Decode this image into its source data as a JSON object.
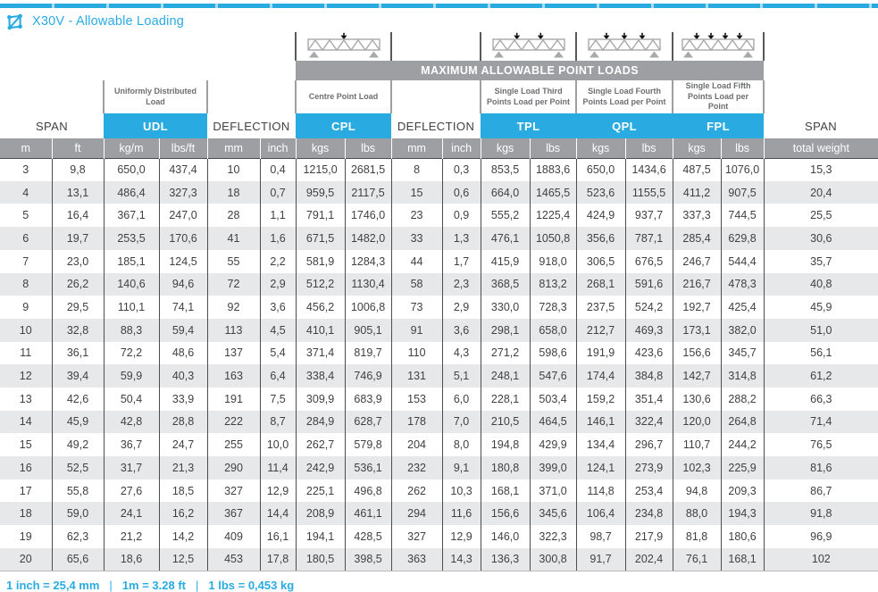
{
  "page": {
    "title": "X30V - Allowable Loading"
  },
  "footer": {
    "items": [
      "1 inch = 25,4 mm",
      "1m = 3.28 ft",
      "1 lbs = 0,453 kg"
    ],
    "separator": "|"
  },
  "colors": {
    "brand_cyan": "#29abe2",
    "gray_bar": "#9d9fa2",
    "row_alt": "#e7e8e9",
    "text_dark": "#414042"
  },
  "table": {
    "point_loads_banner": "MAXIMUM ALLOWABLE POINT LOADS",
    "groups": [
      {
        "label": "SPAN",
        "desc": "",
        "units": [
          "m",
          "ft"
        ]
      },
      {
        "label": "UDL",
        "desc": "Uniformly Distributed Load",
        "units": [
          "kg/m",
          "lbs/ft"
        ]
      },
      {
        "label": "DEFLECTION",
        "desc": "",
        "units": [
          "mm",
          "inch"
        ]
      },
      {
        "label": "CPL",
        "desc": "Centre Point Load",
        "units": [
          "kgs",
          "lbs"
        ],
        "truss_arrows": 1
      },
      {
        "label": "DEFLECTION",
        "desc": "",
        "units": [
          "mm",
          "inch"
        ]
      },
      {
        "label": "TPL",
        "desc": "Single Load Third Points Load per Point",
        "units": [
          "kgs",
          "lbs"
        ],
        "truss_arrows": 2
      },
      {
        "label": "QPL",
        "desc": "Single Load Fourth Points Load per Point",
        "units": [
          "kgs",
          "lbs"
        ],
        "truss_arrows": 3
      },
      {
        "label": "FPL",
        "desc": "Single Load Fifth Points Load per Point",
        "units": [
          "kgs",
          "lbs"
        ],
        "truss_arrows": 4
      },
      {
        "label": "SPAN",
        "desc": "",
        "units": [
          "total weight"
        ]
      }
    ],
    "units": [
      "m",
      "ft",
      "kg/m",
      "lbs/ft",
      "mm",
      "inch",
      "kgs",
      "lbs",
      "mm",
      "inch",
      "kgs",
      "lbs",
      "kgs",
      "lbs",
      "kgs",
      "lbs",
      "total weight"
    ],
    "rows": [
      [
        "3",
        "9,8",
        "650,0",
        "437,4",
        "10",
        "0,4",
        "1215,0",
        "2681,5",
        "8",
        "0,3",
        "853,5",
        "1883,6",
        "650,0",
        "1434,6",
        "487,5",
        "1076,0",
        "15,3"
      ],
      [
        "4",
        "13,1",
        "486,4",
        "327,3",
        "18",
        "0,7",
        "959,5",
        "2117,5",
        "15",
        "0,6",
        "664,0",
        "1465,5",
        "523,6",
        "1155,5",
        "411,2",
        "907,5",
        "20,4"
      ],
      [
        "5",
        "16,4",
        "367,1",
        "247,0",
        "28",
        "1,1",
        "791,1",
        "1746,0",
        "23",
        "0,9",
        "555,2",
        "1225,4",
        "424,9",
        "937,7",
        "337,3",
        "744,5",
        "25,5"
      ],
      [
        "6",
        "19,7",
        "253,5",
        "170,6",
        "41",
        "1,6",
        "671,5",
        "1482,0",
        "33",
        "1,3",
        "476,1",
        "1050,8",
        "356,6",
        "787,1",
        "285,4",
        "629,8",
        "30,6"
      ],
      [
        "7",
        "23,0",
        "185,1",
        "124,5",
        "55",
        "2,2",
        "581,9",
        "1284,3",
        "44",
        "1,7",
        "415,9",
        "918,0",
        "306,5",
        "676,5",
        "246,7",
        "544,4",
        "35,7"
      ],
      [
        "8",
        "26,2",
        "140,6",
        "94,6",
        "72",
        "2,9",
        "512,2",
        "1130,4",
        "58",
        "2,3",
        "368,5",
        "813,2",
        "268,1",
        "591,6",
        "216,7",
        "478,3",
        "40,8"
      ],
      [
        "9",
        "29,5",
        "110,1",
        "74,1",
        "92",
        "3,6",
        "456,2",
        "1006,8",
        "73",
        "2,9",
        "330,0",
        "728,3",
        "237,5",
        "524,2",
        "192,7",
        "425,4",
        "45,9"
      ],
      [
        "10",
        "32,8",
        "88,3",
        "59,4",
        "113",
        "4,5",
        "410,1",
        "905,1",
        "91",
        "3,6",
        "298,1",
        "658,0",
        "212,7",
        "469,3",
        "173,1",
        "382,0",
        "51,0"
      ],
      [
        "11",
        "36,1",
        "72,2",
        "48,6",
        "137",
        "5,4",
        "371,4",
        "819,7",
        "110",
        "4,3",
        "271,2",
        "598,6",
        "191,9",
        "423,6",
        "156,6",
        "345,7",
        "56,1"
      ],
      [
        "12",
        "39,4",
        "59,9",
        "40,3",
        "163",
        "6,4",
        "338,4",
        "746,9",
        "131",
        "5,1",
        "248,1",
        "547,6",
        "174,4",
        "384,8",
        "142,7",
        "314,8",
        "61,2"
      ],
      [
        "13",
        "42,6",
        "50,4",
        "33,9",
        "191",
        "7,5",
        "309,9",
        "683,9",
        "153",
        "6,0",
        "228,1",
        "503,4",
        "159,2",
        "351,4",
        "130,6",
        "288,2",
        "66,3"
      ],
      [
        "14",
        "45,9",
        "42,8",
        "28,8",
        "222",
        "8,7",
        "284,9",
        "628,7",
        "178",
        "7,0",
        "210,5",
        "464,5",
        "146,1",
        "322,4",
        "120,0",
        "264,8",
        "71,4"
      ],
      [
        "15",
        "49,2",
        "36,7",
        "24,7",
        "255",
        "10,0",
        "262,7",
        "579,8",
        "204",
        "8,0",
        "194,8",
        "429,9",
        "134,4",
        "296,7",
        "110,7",
        "244,2",
        "76,5"
      ],
      [
        "16",
        "52,5",
        "31,7",
        "21,3",
        "290",
        "11,4",
        "242,9",
        "536,1",
        "232",
        "9,1",
        "180,8",
        "399,0",
        "124,1",
        "273,9",
        "102,3",
        "225,9",
        "81,6"
      ],
      [
        "17",
        "55,8",
        "27,6",
        "18,5",
        "327",
        "12,9",
        "225,1",
        "496,8",
        "262",
        "10,3",
        "168,1",
        "371,0",
        "114,8",
        "253,4",
        "94,8",
        "209,3",
        "86,7"
      ],
      [
        "18",
        "59,0",
        "24,1",
        "16,2",
        "367",
        "14,4",
        "208,9",
        "461,1",
        "294",
        "11,6",
        "156,6",
        "345,6",
        "106,4",
        "234,8",
        "88,0",
        "194,3",
        "91,8"
      ],
      [
        "19",
        "62,3",
        "21,2",
        "14,2",
        "409",
        "16,1",
        "194,1",
        "428,5",
        "327",
        "12,9",
        "146,0",
        "322,3",
        "98,7",
        "217,9",
        "81,8",
        "180,6",
        "96,9"
      ],
      [
        "20",
        "65,6",
        "18,6",
        "12,5",
        "453",
        "17,8",
        "180,5",
        "398,5",
        "363",
        "14,3",
        "136,3",
        "300,8",
        "91,7",
        "202,4",
        "76,1",
        "168,1",
        "102"
      ]
    ]
  }
}
